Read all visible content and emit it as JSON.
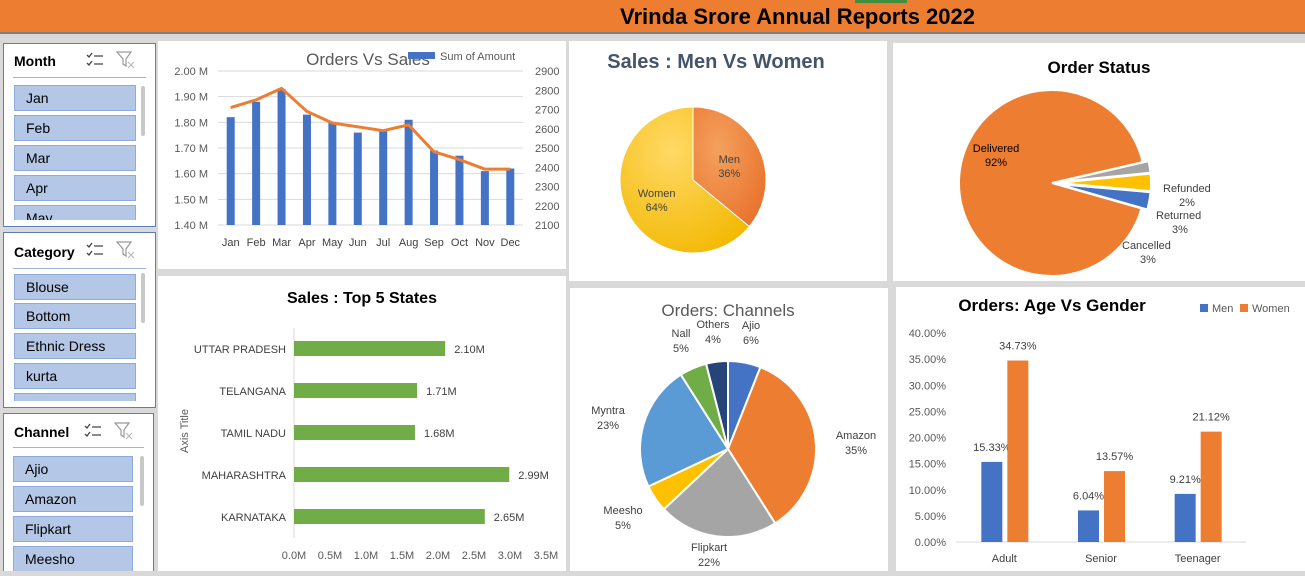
{
  "report_title": "Vrinda Srore Annual Reports 2022",
  "colors": {
    "accent_orange": "#ed7d31",
    "blue": "#4472c4",
    "green": "#70ad47",
    "yellow": "#ffc000",
    "gray": "#a5a5a5",
    "navy": "#264478",
    "light_blue": "#5b9bd5",
    "slicer_item": "#b4c7e7"
  },
  "slicers": {
    "month": {
      "title": "Month",
      "items": [
        "Jan",
        "Feb",
        "Mar",
        "Apr",
        "May"
      ]
    },
    "category": {
      "title": "Category",
      "items": [
        "Blouse",
        "Bottom",
        "Ethnic Dress",
        "kurta",
        ""
      ]
    },
    "channel": {
      "title": "Channel",
      "items": [
        "Ajio",
        "Amazon",
        "Flipkart",
        "Meesho"
      ]
    }
  },
  "icons": {
    "multi_select": "multi-select-icon",
    "clear_filter": "clear-filter-icon"
  },
  "chart_data": [
    {
      "id": "orders_vs_sales",
      "type": "bar",
      "title": "Orders Vs Sales",
      "legend": "top-right",
      "categories": [
        "Jan",
        "Feb",
        "Mar",
        "Apr",
        "May",
        "Jun",
        "Jul",
        "Aug",
        "Sep",
        "Oct",
        "Nov",
        "Dec"
      ],
      "series": [
        {
          "name": "Sum of Amount",
          "type": "bar",
          "axis": "left",
          "values": [
            1.82,
            1.88,
            1.93,
            1.83,
            1.8,
            1.76,
            1.77,
            1.81,
            1.69,
            1.67,
            1.61,
            1.62
          ]
        },
        {
          "type": "line",
          "axis": "right",
          "values": [
            2710,
            2750,
            2810,
            2690,
            2630,
            2610,
            2590,
            2620,
            2480,
            2440,
            2390,
            2390
          ]
        }
      ],
      "y_left": {
        "min": 1.4,
        "max": 2.0,
        "ticks": [
          "2.00 M",
          "1.90 M",
          "1.80 M",
          "1.70 M",
          "1.60 M",
          "1.50 M",
          "1.40 M"
        ]
      },
      "y_right": {
        "min": 2100,
        "max": 2900,
        "ticks": [
          "2900",
          "2800",
          "2700",
          "2600",
          "2500",
          "2400",
          "2300",
          "2200",
          "2100"
        ]
      },
      "grid": true
    },
    {
      "id": "men_vs_women",
      "type": "pie",
      "title": "Sales : Men Vs Women",
      "slices": [
        {
          "label": "Men",
          "pct": "36%",
          "value": 36
        },
        {
          "label": "Women",
          "pct": "64%",
          "value": 64
        }
      ]
    },
    {
      "id": "order_status",
      "type": "pie",
      "title": "Order Status",
      "slices": [
        {
          "label": "Delivered",
          "pct": "92%",
          "value": 92
        },
        {
          "label": "Refunded",
          "pct": "2%",
          "value": 2
        },
        {
          "label": "Returned",
          "pct": "3%",
          "value": 3
        },
        {
          "label": "Cancelled",
          "pct": "3%",
          "value": 3
        }
      ]
    },
    {
      "id": "top5_states",
      "type": "bar",
      "orientation": "horizontal",
      "title": "Sales : Top 5 States",
      "ylabel": "Axis Title",
      "categories": [
        "UTTAR PRADESH",
        "TELANGANA",
        "TAMIL NADU",
        "MAHARASHTRA",
        "KARNATAKA"
      ],
      "values": [
        2.1,
        1.71,
        1.68,
        2.99,
        2.65
      ],
      "labels": [
        "2.10M",
        "1.71M",
        "1.68M",
        "2.99M",
        "2.65M"
      ],
      "xlim": [
        0,
        3.5
      ],
      "x_ticks": [
        "0.0M",
        "0.5M",
        "1.0M",
        "1.5M",
        "2.0M",
        "2.5M",
        "3.0M",
        "3.5M"
      ],
      "grid": false
    },
    {
      "id": "orders_channels",
      "type": "pie",
      "title": "Orders: Channels",
      "slices": [
        {
          "label": "Ajio",
          "pct": "6%",
          "value": 6
        },
        {
          "label": "Amazon",
          "pct": "35%",
          "value": 35
        },
        {
          "label": "Flipkart",
          "pct": "22%",
          "value": 22
        },
        {
          "label": "Meesho",
          "pct": "5%",
          "value": 5
        },
        {
          "label": "Myntra",
          "pct": "23%",
          "value": 23
        },
        {
          "label": "Nall",
          "pct": "5%",
          "value": 5
        },
        {
          "label": "Others",
          "pct": "4%",
          "value": 4
        }
      ]
    },
    {
      "id": "age_vs_gender",
      "type": "bar",
      "title": "Orders: Age  Vs Gender",
      "legend": "top-right",
      "categories": [
        "Adult",
        "Senior",
        "Teenager"
      ],
      "series": [
        {
          "name": "Men",
          "values": [
            15.33,
            6.04,
            9.21
          ],
          "labels": [
            "15.33%",
            "6.04%",
            "9.21%"
          ]
        },
        {
          "name": "Women",
          "values": [
            34.73,
            13.57,
            21.12
          ],
          "labels": [
            "34.73%",
            "13.57%",
            "21.12%"
          ]
        }
      ],
      "ylim": [
        0,
        40
      ],
      "y_ticks": [
        "40.00%",
        "35.00%",
        "30.00%",
        "25.00%",
        "20.00%",
        "15.00%",
        "10.00%",
        "5.00%",
        "0.00%"
      ],
      "grid": false
    }
  ]
}
